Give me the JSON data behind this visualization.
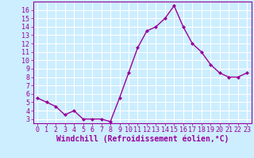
{
  "x": [
    0,
    1,
    2,
    3,
    4,
    5,
    6,
    7,
    8,
    9,
    10,
    11,
    12,
    13,
    14,
    15,
    16,
    17,
    18,
    19,
    20,
    21,
    22,
    23
  ],
  "y": [
    5.5,
    5.0,
    4.5,
    3.5,
    4.0,
    3.0,
    3.0,
    3.0,
    2.7,
    5.5,
    8.5,
    11.5,
    13.5,
    14.0,
    15.0,
    16.5,
    14.0,
    12.0,
    11.0,
    9.5,
    8.5,
    8.0,
    8.0,
    8.5
  ],
  "line_color": "#990099",
  "marker": "D",
  "marker_size": 2.0,
  "background_color": "#cceeff",
  "grid_color": "#ffffff",
  "xlabel": "Windchill (Refroidissement éolien,°C)",
  "xlim": [
    -0.5,
    23.5
  ],
  "ylim": [
    2.5,
    17.0
  ],
  "xticks": [
    0,
    1,
    2,
    3,
    4,
    5,
    6,
    7,
    8,
    9,
    10,
    11,
    12,
    13,
    14,
    15,
    16,
    17,
    18,
    19,
    20,
    21,
    22,
    23
  ],
  "yticks": [
    3,
    4,
    5,
    6,
    7,
    8,
    9,
    10,
    11,
    12,
    13,
    14,
    15,
    16
  ],
  "tick_color": "#990099",
  "tick_fontsize": 6.0,
  "xlabel_fontsize": 7.0,
  "axis_color": "#990099",
  "linewidth": 1.0
}
